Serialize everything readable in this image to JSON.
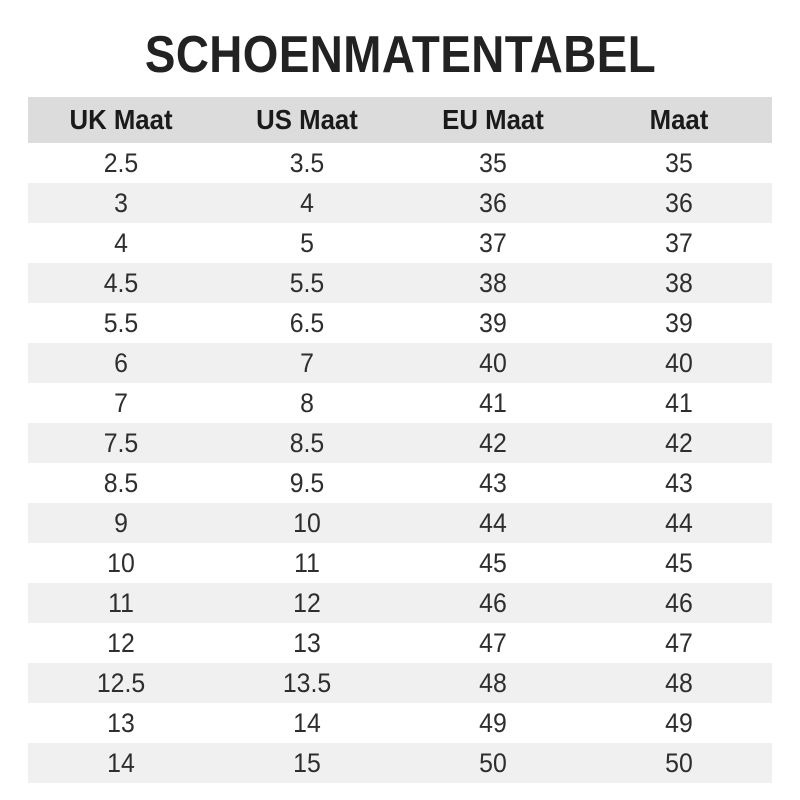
{
  "title": "SCHOENMATENTABEL",
  "colors": {
    "header_bg": "#dcdcdc",
    "stripe_bg": "#f0f0f0",
    "row_bg": "#ffffff",
    "title_text": "#222222",
    "body_text": "#2e2e2e"
  },
  "table": {
    "headers": [
      "UK Maat",
      "US Maat",
      "EU Maat",
      "Maat"
    ],
    "rows": [
      [
        "2.5",
        "3.5",
        "35",
        "35"
      ],
      [
        "3",
        "4",
        "36",
        "36"
      ],
      [
        "4",
        "5",
        "37",
        "37"
      ],
      [
        "4.5",
        "5.5",
        "38",
        "38"
      ],
      [
        "5.5",
        "6.5",
        "39",
        "39"
      ],
      [
        "6",
        "7",
        "40",
        "40"
      ],
      [
        "7",
        "8",
        "41",
        "41"
      ],
      [
        "7.5",
        "8.5",
        "42",
        "42"
      ],
      [
        "8.5",
        "9.5",
        "43",
        "43"
      ],
      [
        "9",
        "10",
        "44",
        "44"
      ],
      [
        "10",
        "11",
        "45",
        "45"
      ],
      [
        "11",
        "12",
        "46",
        "46"
      ],
      [
        "12",
        "13",
        "47",
        "47"
      ],
      [
        "12.5",
        "13.5",
        "48",
        "48"
      ],
      [
        "13",
        "14",
        "49",
        "49"
      ],
      [
        "14",
        "15",
        "50",
        "50"
      ]
    ]
  }
}
